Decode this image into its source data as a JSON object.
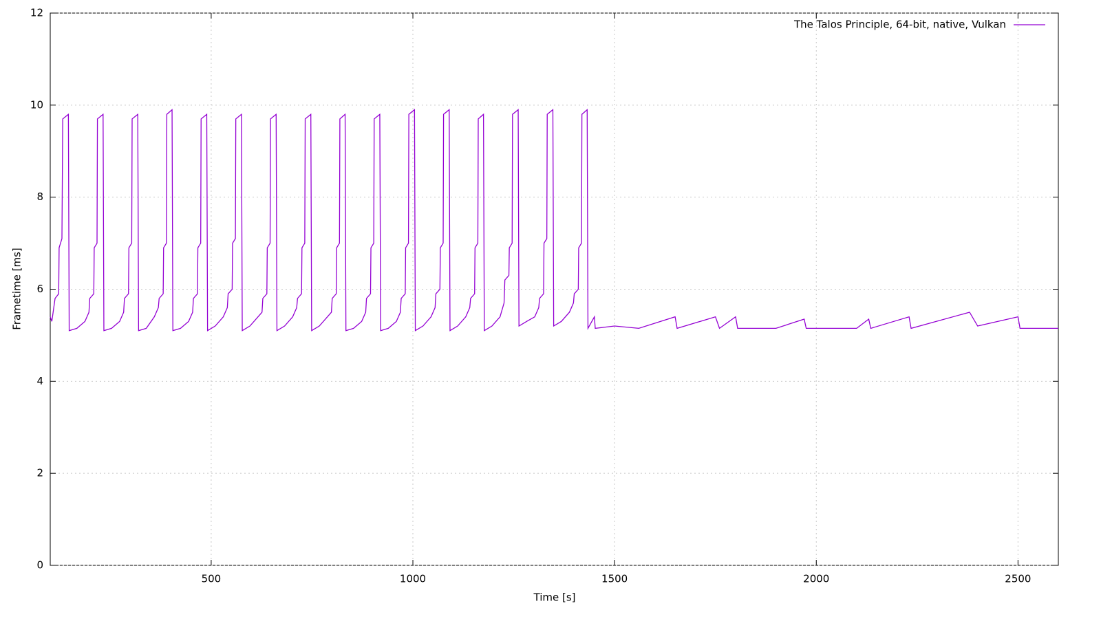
{
  "chart_data": {
    "type": "line",
    "xlabel": "Time [s]",
    "ylabel": "Frametime [ms]",
    "xlim": [
      101,
      2600
    ],
    "ylim": [
      0,
      12
    ],
    "xticks": [
      500,
      1000,
      1500,
      2000,
      2500
    ],
    "yticks": [
      0,
      2,
      4,
      6,
      8,
      10,
      12
    ],
    "grid": true,
    "legend": "upper right",
    "x": [
      101,
      105,
      113,
      122,
      123,
      130,
      132,
      146,
      148,
      167,
      187,
      197,
      199,
      209,
      210,
      217,
      218,
      232,
      234,
      253,
      273,
      283,
      285,
      295,
      296,
      303,
      304,
      318,
      320,
      339,
      359,
      369,
      371,
      381,
      382,
      389,
      390,
      403,
      405,
      424,
      444,
      454,
      456,
      466,
      467,
      474,
      475,
      489,
      491,
      510,
      530,
      540,
      542,
      552,
      553,
      560,
      561,
      575,
      577,
      596,
      616,
      626,
      628,
      638,
      639,
      646,
      647,
      661,
      663,
      682,
      702,
      712,
      714,
      724,
      725,
      732,
      733,
      747,
      749,
      768,
      788,
      798,
      800,
      810,
      811,
      818,
      819,
      832,
      834,
      853,
      873,
      883,
      885,
      895,
      896,
      903,
      904,
      918,
      920,
      939,
      959,
      969,
      971,
      981,
      982,
      989,
      990,
      1004,
      1006,
      1025,
      1045,
      1055,
      1057,
      1067,
      1068,
      1075,
      1076,
      1090,
      1092,
      1111,
      1131,
      1141,
      1143,
      1153,
      1154,
      1161,
      1162,
      1175,
      1177,
      1196,
      1216,
      1226,
      1228,
      1238,
      1239,
      1246,
      1247,
      1261,
      1263,
      1282,
      1302,
      1312,
      1314,
      1324,
      1325,
      1332,
      1333,
      1347,
      1349,
      1368,
      1388,
      1398,
      1400,
      1410,
      1411,
      1418,
      1419,
      1432,
      1434,
      1450,
      1452,
      1500,
      1560,
      1650,
      1655,
      1750,
      1760,
      1800,
      1805,
      1900,
      1970,
      1975,
      2100,
      2130,
      2135,
      2230,
      2235,
      2380,
      2400,
      2500,
      2505,
      2600
    ],
    "series": [
      {
        "name": "The Talos Principle, 64-bit, native, Vulkan",
        "color": "#9400d3",
        "values": [
          5.4,
          5.3,
          5.8,
          5.9,
          6.9,
          7.1,
          9.7,
          9.8,
          5.1,
          5.15,
          5.3,
          5.5,
          5.8,
          5.9,
          6.9,
          7.0,
          9.7,
          9.8,
          5.1,
          5.15,
          5.3,
          5.5,
          5.8,
          5.9,
          6.9,
          7.0,
          9.7,
          9.8,
          5.1,
          5.15,
          5.4,
          5.6,
          5.8,
          5.9,
          6.9,
          7.0,
          9.8,
          9.9,
          5.1,
          5.15,
          5.3,
          5.5,
          5.8,
          5.9,
          6.9,
          7.0,
          9.7,
          9.8,
          5.1,
          5.2,
          5.4,
          5.6,
          5.9,
          6.0,
          7.0,
          7.1,
          9.7,
          9.8,
          5.1,
          5.2,
          5.4,
          5.5,
          5.8,
          5.9,
          6.9,
          7.0,
          9.7,
          9.8,
          5.1,
          5.2,
          5.4,
          5.6,
          5.8,
          5.9,
          6.9,
          7.0,
          9.7,
          9.8,
          5.1,
          5.2,
          5.4,
          5.5,
          5.8,
          5.9,
          6.9,
          7.0,
          9.7,
          9.8,
          5.1,
          5.15,
          5.3,
          5.5,
          5.8,
          5.9,
          6.9,
          7.0,
          9.7,
          9.8,
          5.1,
          5.15,
          5.3,
          5.5,
          5.8,
          5.9,
          6.9,
          7.0,
          9.8,
          9.9,
          5.1,
          5.2,
          5.4,
          5.6,
          5.9,
          6.0,
          6.9,
          7.0,
          9.8,
          9.9,
          5.1,
          5.2,
          5.4,
          5.6,
          5.8,
          5.9,
          6.9,
          7.0,
          9.7,
          9.8,
          5.1,
          5.2,
          5.4,
          5.7,
          6.2,
          6.3,
          6.9,
          7.0,
          9.8,
          9.9,
          5.2,
          5.3,
          5.4,
          5.6,
          5.8,
          5.9,
          7.0,
          7.1,
          9.8,
          9.9,
          5.2,
          5.3,
          5.5,
          5.7,
          5.9,
          6.0,
          6.9,
          7.0,
          9.8,
          9.9,
          5.15,
          5.4,
          5.15,
          5.2,
          5.15,
          5.4,
          5.15,
          5.4,
          5.15,
          5.4,
          5.15,
          5.15,
          5.35,
          5.15,
          5.15,
          5.35,
          5.15,
          5.4,
          5.15,
          5.5,
          5.2,
          5.4,
          5.15,
          5.15
        ]
      }
    ]
  }
}
